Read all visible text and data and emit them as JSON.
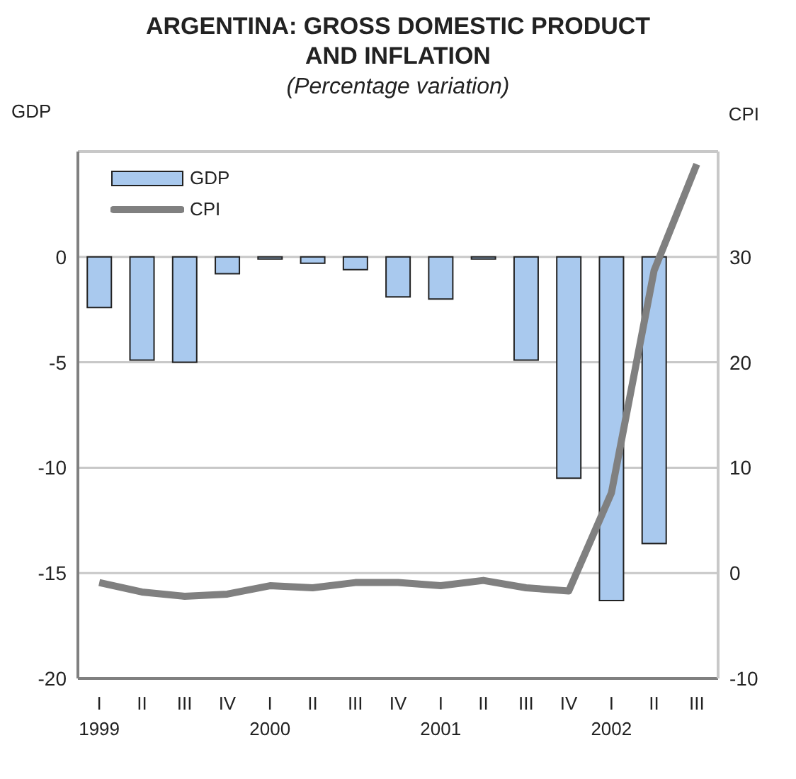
{
  "chart_data": {
    "type": "bar",
    "title": "ARGENTINA: GROSS DOMESTIC PRODUCT AND INFLATION",
    "subtitle": "(Percentage variation)",
    "ylabel": "GDP",
    "y2label": "CPI",
    "categories": [
      "I",
      "II",
      "III",
      "IV",
      "I",
      "II",
      "III",
      "IV",
      "I",
      "II",
      "III",
      "IV",
      "I",
      "II",
      "III"
    ],
    "series": [
      {
        "name": "GDP",
        "color": "#a9c9ee",
        "values": [
          -2.4,
          -4.9,
          -5.0,
          -0.8,
          -0.1,
          -0.3,
          -0.6,
          -1.9,
          -2.0,
          -0.1,
          -4.9,
          -10.5,
          -16.3,
          -13.6,
          null
        ]
      },
      {
        "name": "CPI",
        "type": "line",
        "axis": "y2",
        "color": "#808080",
        "values": [
          -0.9,
          -1.8,
          -2.2,
          -2.0,
          -1.2,
          -1.4,
          -0.9,
          -0.9,
          -1.2,
          -0.7,
          -1.4,
          -1.7,
          7.6,
          28.7,
          38.8
        ]
      }
    ],
    "annotations": [
      "1999",
      "2000",
      "2001",
      "2002"
    ],
    "ylim": [
      -20,
      5
    ],
    "yticks": [
      -20,
      -15,
      -10,
      -5,
      0
    ],
    "y2lim": [
      -10,
      40
    ],
    "y2ticks": [
      -10,
      0,
      10,
      20,
      30
    ],
    "grid": "y",
    "legend": "top left",
    "marker": "none",
    "line_style": "solid"
  }
}
